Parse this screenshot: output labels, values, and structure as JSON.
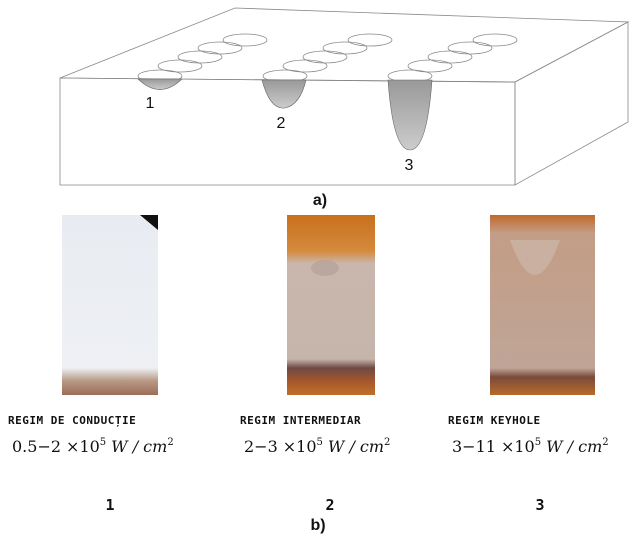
{
  "part_a": {
    "caption": "a)",
    "labels": [
      "1",
      "2",
      "3"
    ]
  },
  "part_b": {
    "caption": "b)",
    "panels": [
      {
        "title": "REGIM DE CONDUCȚIE",
        "range": "0.5−2",
        "base": "×10",
        "exp": "5",
        "unit": "W / cm",
        "unit_exp": "2",
        "number": "1"
      },
      {
        "title": "REGIM INTERMEDIAR",
        "range": "2−3",
        "base": "×10",
        "exp": "5",
        "unit": "W / cm",
        "unit_exp": "2",
        "number": "2"
      },
      {
        "title": "REGIM KEYHOLE",
        "range": "3−11",
        "base": "×10",
        "exp": "5",
        "unit": "W / cm",
        "unit_exp": "2",
        "number": "3"
      }
    ]
  }
}
